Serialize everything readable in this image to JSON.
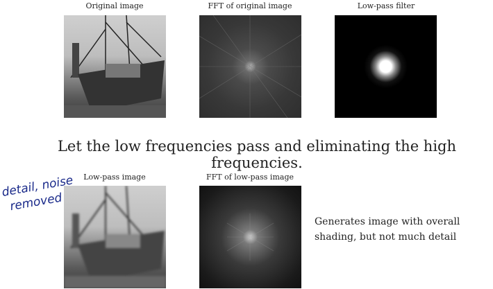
{
  "top_row": {
    "original_caption": "Original image",
    "fft_caption": "FFT of original image",
    "filter_caption": "Low-pass filter"
  },
  "headline": "Let the low frequencies pass and eliminating the high frequencies.",
  "bottom_row": {
    "lowpass_caption": "Low-pass image",
    "fft_caption": "FFT of low-pass image",
    "note_line1": "Generates image with overall",
    "note_line2": "shading, but not much detail"
  },
  "annotation": {
    "line1": "detail, noise",
    "line2": "removed",
    "color": "#1a2a8a"
  }
}
